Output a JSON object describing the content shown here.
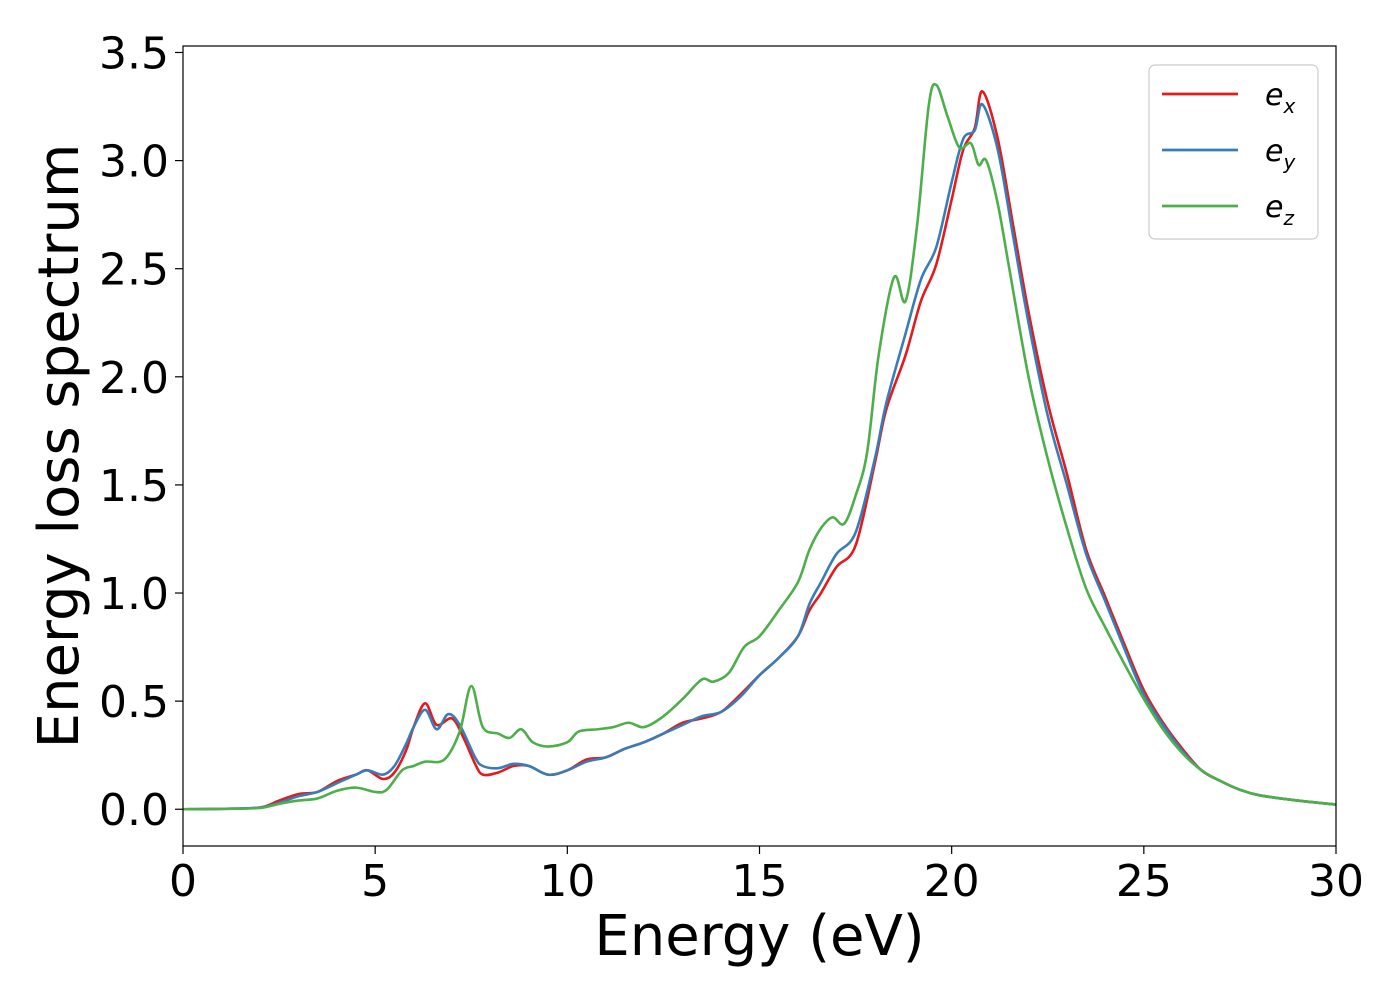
{
  "chart_data": {
    "type": "line",
    "xlabel": "Energy (eV)",
    "ylabel": "Energy loss spectrum",
    "xlim": [
      0,
      30
    ],
    "ylim": [
      -0.17,
      3.53
    ],
    "xticks": [
      "0",
      "5",
      "10",
      "15",
      "20",
      "25",
      "30"
    ],
    "yticks": [
      "0.0",
      "0.5",
      "1.0",
      "1.5",
      "2.0",
      "2.5",
      "3.0",
      "3.5"
    ],
    "grid": false,
    "legend_position": "top-right",
    "series": [
      {
        "name": "e_x",
        "legend_base": "e",
        "legend_sub": "x",
        "color": "#e41a1c",
        "points": [
          [
            0,
            0
          ],
          [
            1,
            0.002
          ],
          [
            2,
            0.008
          ],
          [
            2.5,
            0.04
          ],
          [
            3,
            0.07
          ],
          [
            3.5,
            0.08
          ],
          [
            4,
            0.13
          ],
          [
            4.5,
            0.16
          ],
          [
            4.8,
            0.18
          ],
          [
            5.2,
            0.14
          ],
          [
            5.5,
            0.17
          ],
          [
            5.8,
            0.27
          ],
          [
            6,
            0.38
          ],
          [
            6.3,
            0.49
          ],
          [
            6.6,
            0.39
          ],
          [
            7,
            0.42
          ],
          [
            7.3,
            0.33
          ],
          [
            7.6,
            0.21
          ],
          [
            7.8,
            0.16
          ],
          [
            8.2,
            0.17
          ],
          [
            8.6,
            0.2
          ],
          [
            9,
            0.2
          ],
          [
            9.5,
            0.16
          ],
          [
            10,
            0.18
          ],
          [
            10.5,
            0.23
          ],
          [
            11,
            0.24
          ],
          [
            11.5,
            0.28
          ],
          [
            12,
            0.31
          ],
          [
            12.5,
            0.35
          ],
          [
            13,
            0.4
          ],
          [
            13.5,
            0.42
          ],
          [
            14,
            0.45
          ],
          [
            14.5,
            0.53
          ],
          [
            15,
            0.62
          ],
          [
            15.5,
            0.7
          ],
          [
            16,
            0.8
          ],
          [
            16.3,
            0.92
          ],
          [
            16.6,
            1.0
          ],
          [
            17,
            1.12
          ],
          [
            17.5,
            1.22
          ],
          [
            18,
            1.6
          ],
          [
            18.3,
            1.85
          ],
          [
            18.8,
            2.1
          ],
          [
            19.2,
            2.35
          ],
          [
            19.6,
            2.52
          ],
          [
            20,
            2.82
          ],
          [
            20.3,
            3.05
          ],
          [
            20.6,
            3.15
          ],
          [
            20.8,
            3.32
          ],
          [
            21.2,
            3.1
          ],
          [
            21.6,
            2.7
          ],
          [
            22,
            2.3
          ],
          [
            22.5,
            1.88
          ],
          [
            23,
            1.55
          ],
          [
            23.5,
            1.2
          ],
          [
            24,
            0.98
          ],
          [
            24.5,
            0.76
          ],
          [
            25,
            0.55
          ],
          [
            25.5,
            0.4
          ],
          [
            26,
            0.28
          ],
          [
            26.5,
            0.18
          ],
          [
            27,
            0.13
          ],
          [
            27.5,
            0.09
          ],
          [
            28,
            0.065
          ],
          [
            29,
            0.04
          ],
          [
            30,
            0.022
          ]
        ]
      },
      {
        "name": "e_y",
        "legend_base": "e",
        "legend_sub": "y",
        "color": "#377eb8",
        "points": [
          [
            0,
            0
          ],
          [
            1,
            0.002
          ],
          [
            2,
            0.008
          ],
          [
            2.5,
            0.03
          ],
          [
            3,
            0.06
          ],
          [
            3.5,
            0.08
          ],
          [
            4,
            0.12
          ],
          [
            4.5,
            0.16
          ],
          [
            4.8,
            0.18
          ],
          [
            5.2,
            0.16
          ],
          [
            5.5,
            0.2
          ],
          [
            5.8,
            0.3
          ],
          [
            6,
            0.38
          ],
          [
            6.3,
            0.46
          ],
          [
            6.6,
            0.37
          ],
          [
            6.9,
            0.44
          ],
          [
            7.2,
            0.39
          ],
          [
            7.6,
            0.24
          ],
          [
            7.8,
            0.2
          ],
          [
            8.2,
            0.19
          ],
          [
            8.6,
            0.21
          ],
          [
            9,
            0.2
          ],
          [
            9.5,
            0.16
          ],
          [
            10,
            0.18
          ],
          [
            10.5,
            0.22
          ],
          [
            11,
            0.24
          ],
          [
            11.5,
            0.28
          ],
          [
            12,
            0.31
          ],
          [
            12.5,
            0.35
          ],
          [
            13,
            0.39
          ],
          [
            13.5,
            0.43
          ],
          [
            14,
            0.45
          ],
          [
            14.5,
            0.52
          ],
          [
            15,
            0.62
          ],
          [
            15.5,
            0.7
          ],
          [
            16,
            0.8
          ],
          [
            16.3,
            0.95
          ],
          [
            16.6,
            1.05
          ],
          [
            17,
            1.18
          ],
          [
            17.5,
            1.28
          ],
          [
            18,
            1.62
          ],
          [
            18.3,
            1.88
          ],
          [
            18.8,
            2.2
          ],
          [
            19.2,
            2.45
          ],
          [
            19.6,
            2.6
          ],
          [
            20,
            2.9
          ],
          [
            20.3,
            3.1
          ],
          [
            20.6,
            3.14
          ],
          [
            20.8,
            3.26
          ],
          [
            21.2,
            3.05
          ],
          [
            21.6,
            2.65
          ],
          [
            22,
            2.25
          ],
          [
            22.5,
            1.82
          ],
          [
            23,
            1.5
          ],
          [
            23.5,
            1.18
          ],
          [
            24,
            0.96
          ],
          [
            24.5,
            0.74
          ],
          [
            25,
            0.53
          ],
          [
            25.5,
            0.39
          ],
          [
            26,
            0.27
          ],
          [
            26.5,
            0.18
          ],
          [
            27,
            0.13
          ],
          [
            27.5,
            0.09
          ],
          [
            28,
            0.065
          ],
          [
            29,
            0.04
          ],
          [
            30,
            0.022
          ]
        ]
      },
      {
        "name": "e_z",
        "legend_base": "e",
        "legend_sub": "z",
        "color": "#4daf4a",
        "points": [
          [
            0,
            0
          ],
          [
            1,
            0.002
          ],
          [
            2,
            0.006
          ],
          [
            2.5,
            0.025
          ],
          [
            3,
            0.04
          ],
          [
            3.5,
            0.05
          ],
          [
            4,
            0.085
          ],
          [
            4.5,
            0.1
          ],
          [
            5,
            0.08
          ],
          [
            5.3,
            0.09
          ],
          [
            5.7,
            0.18
          ],
          [
            6,
            0.2
          ],
          [
            6.3,
            0.22
          ],
          [
            6.8,
            0.23
          ],
          [
            7.2,
            0.36
          ],
          [
            7.5,
            0.57
          ],
          [
            7.8,
            0.38
          ],
          [
            8.2,
            0.35
          ],
          [
            8.5,
            0.33
          ],
          [
            8.8,
            0.37
          ],
          [
            9.1,
            0.31
          ],
          [
            9.5,
            0.29
          ],
          [
            10,
            0.31
          ],
          [
            10.3,
            0.36
          ],
          [
            10.8,
            0.37
          ],
          [
            11.2,
            0.38
          ],
          [
            11.6,
            0.4
          ],
          [
            12,
            0.38
          ],
          [
            12.5,
            0.43
          ],
          [
            13,
            0.51
          ],
          [
            13.5,
            0.6
          ],
          [
            13.8,
            0.59
          ],
          [
            14.2,
            0.63
          ],
          [
            14.6,
            0.75
          ],
          [
            15,
            0.8
          ],
          [
            15.5,
            0.92
          ],
          [
            16,
            1.05
          ],
          [
            16.3,
            1.2
          ],
          [
            16.6,
            1.3
          ],
          [
            16.9,
            1.35
          ],
          [
            17.2,
            1.32
          ],
          [
            17.5,
            1.45
          ],
          [
            17.8,
            1.65
          ],
          [
            18.1,
            2.1
          ],
          [
            18.5,
            2.46
          ],
          [
            18.8,
            2.35
          ],
          [
            19.1,
            2.7
          ],
          [
            19.4,
            3.25
          ],
          [
            19.6,
            3.35
          ],
          [
            19.9,
            3.2
          ],
          [
            20.2,
            3.06
          ],
          [
            20.5,
            3.08
          ],
          [
            20.7,
            2.98
          ],
          [
            20.9,
            3.0
          ],
          [
            21.2,
            2.8
          ],
          [
            21.5,
            2.5
          ],
          [
            22,
            2.0
          ],
          [
            22.5,
            1.62
          ],
          [
            23,
            1.3
          ],
          [
            23.5,
            1.02
          ],
          [
            24,
            0.84
          ],
          [
            24.5,
            0.67
          ],
          [
            25,
            0.51
          ],
          [
            25.5,
            0.37
          ],
          [
            26,
            0.26
          ],
          [
            26.5,
            0.18
          ],
          [
            27,
            0.13
          ],
          [
            27.5,
            0.09
          ],
          [
            28,
            0.065
          ],
          [
            29,
            0.04
          ],
          [
            30,
            0.022
          ]
        ]
      }
    ]
  }
}
